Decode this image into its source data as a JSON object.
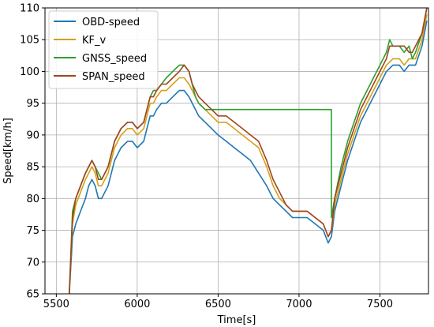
{
  "chart_data": {
    "type": "line",
    "title": "",
    "xlabel": "Time[s]",
    "ylabel": "Speed[km/h]",
    "xlim": [
      5430,
      7800
    ],
    "ylim": [
      65,
      110
    ],
    "xticks": [
      5500,
      6000,
      6500,
      7000,
      7500
    ],
    "yticks": [
      65,
      70,
      75,
      80,
      85,
      90,
      95,
      100,
      105,
      110
    ],
    "grid": true,
    "legend_position": "top-left",
    "series": [
      {
        "name": "OBD-speed",
        "color": "#1f77b4",
        "x": [
          5580,
          5600,
          5620,
          5650,
          5680,
          5700,
          5720,
          5740,
          5760,
          5780,
          5800,
          5820,
          5840,
          5860,
          5900,
          5940,
          5970,
          6000,
          6040,
          6060,
          6080,
          6100,
          6120,
          6150,
          6180,
          6220,
          6260,
          6290,
          6320,
          6360,
          6380,
          6420,
          6460,
          6500,
          6550,
          6600,
          6650,
          6700,
          6750,
          6800,
          6840,
          6880,
          6920,
          6960,
          7000,
          7050,
          7100,
          7150,
          7180,
          7200,
          7220,
          7260,
          7300,
          7340,
          7380,
          7420,
          7460,
          7500,
          7540,
          7580,
          7620,
          7650,
          7680,
          7720,
          7760,
          7790
        ],
        "y": [
          65,
          74,
          76,
          78,
          80,
          82,
          83,
          82,
          80,
          80,
          81,
          82,
          84,
          86,
          88,
          89,
          89,
          88,
          89,
          91,
          93,
          93,
          94,
          95,
          95,
          96,
          97,
          97,
          96,
          94,
          93,
          92,
          91,
          90,
          89,
          88,
          87,
          86,
          84,
          82,
          80,
          79,
          78,
          77,
          77,
          77,
          76,
          75,
          73,
          74,
          78,
          82,
          86,
          89,
          92,
          94,
          96,
          98,
          100,
          101,
          101,
          100,
          101,
          101,
          104,
          108
        ]
      },
      {
        "name": "KF_v",
        "color": "#d4a017",
        "x": [
          5580,
          5600,
          5620,
          5650,
          5680,
          5700,
          5720,
          5740,
          5760,
          5780,
          5800,
          5820,
          5840,
          5860,
          5900,
          5940,
          5970,
          6000,
          6040,
          6060,
          6080,
          6100,
          6120,
          6150,
          6180,
          6220,
          6260,
          6290,
          6320,
          6360,
          6380,
          6420,
          6460,
          6500,
          6550,
          6600,
          6650,
          6700,
          6750,
          6800,
          6840,
          6880,
          6920,
          6960,
          7000,
          7050,
          7100,
          7150,
          7180,
          7200,
          7220,
          7260,
          7300,
          7340,
          7380,
          7420,
          7460,
          7500,
          7540,
          7580,
          7620,
          7650,
          7680,
          7720,
          7760,
          7790
        ],
        "y": [
          65,
          76,
          79,
          81,
          83,
          84,
          85,
          84,
          82,
          82,
          83,
          84,
          86,
          88,
          90,
          91,
          91,
          90,
          91,
          93,
          95,
          95,
          96,
          97,
          97,
          98,
          99,
          99,
          98,
          96,
          95,
          94,
          93,
          92,
          92,
          91,
          90,
          89,
          88,
          85,
          82,
          80,
          79,
          78,
          78,
          78,
          77,
          76,
          74,
          75,
          79,
          83,
          87,
          90,
          93,
          95,
          97,
          99,
          101,
          102,
          102,
          101,
          102,
          102,
          105,
          109
        ]
      },
      {
        "name": "GNSS_speed",
        "color": "#2ca02c",
        "x": [
          5580,
          5600,
          5620,
          5650,
          5680,
          5700,
          5720,
          5740,
          5760,
          5780,
          5800,
          5820,
          5840,
          5860,
          5900,
          5940,
          5970,
          6000,
          6040,
          6060,
          6080,
          6100,
          6120,
          6150,
          6180,
          6220,
          6260,
          6290,
          6320,
          6340,
          6360,
          6380,
          6420,
          7200,
          7200,
          7220,
          7260,
          7300,
          7340,
          7380,
          7420,
          7460,
          7500,
          7540,
          7560,
          7580,
          7620,
          7650,
          7680,
          7700,
          7720,
          7760,
          7790
        ],
        "y": [
          65,
          78,
          80,
          82,
          84,
          85,
          86,
          85,
          84,
          83,
          84,
          85,
          87,
          89,
          91,
          92,
          92,
          91,
          92,
          94,
          96,
          97,
          97,
          98,
          99,
          100,
          101,
          101,
          100,
          98,
          96,
          95,
          94,
          94,
          77,
          80,
          85,
          89,
          92,
          95,
          97,
          99,
          101,
          103,
          105,
          104,
          104,
          103,
          104,
          102,
          103,
          106,
          110
        ]
      },
      {
        "name": "SPAN_speed",
        "color": "#a0441f",
        "x": [
          5580,
          5600,
          5620,
          5650,
          5680,
          5700,
          5720,
          5740,
          5760,
          5780,
          5800,
          5820,
          5840,
          5860,
          5900,
          5940,
          5970,
          6000,
          6040,
          6060,
          6080,
          6100,
          6120,
          6150,
          6180,
          6220,
          6260,
          6290,
          6320,
          6340,
          6360,
          6380,
          6420,
          6460,
          6500,
          6550,
          6600,
          6650,
          6700,
          6750,
          6800,
          6840,
          6880,
          6920,
          6960,
          7000,
          7050,
          7100,
          7150,
          7180,
          7200,
          7220,
          7260,
          7300,
          7340,
          7380,
          7420,
          7460,
          7500,
          7540,
          7560,
          7580,
          7620,
          7650,
          7680,
          7700,
          7720,
          7760,
          7790
        ],
        "y": [
          65,
          77,
          80,
          82,
          84,
          85,
          86,
          85,
          83,
          83,
          84,
          85,
          87,
          89,
          91,
          92,
          92,
          91,
          92,
          94,
          96,
          96,
          97,
          98,
          98,
          99,
          100,
          101,
          100,
          98,
          97,
          96,
          95,
          94,
          93,
          93,
          92,
          91,
          90,
          89,
          86,
          83,
          81,
          79,
          78,
          78,
          78,
          77,
          76,
          74,
          75,
          80,
          84,
          88,
          91,
          94,
          96,
          98,
          100,
          102,
          104,
          104,
          104,
          104,
          103,
          103,
          104,
          106,
          110
        ]
      }
    ]
  }
}
